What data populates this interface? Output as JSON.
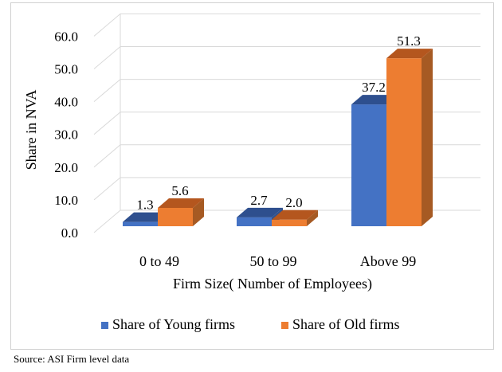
{
  "chart_data": {
    "type": "bar",
    "categories": [
      "0 to 49",
      "50 to 99",
      "Above 99"
    ],
    "series": [
      {
        "name": "Share of Young firms",
        "values": [
          1.3,
          2.7,
          37.2
        ],
        "color": "#4472C4",
        "side_color": "#2F528F",
        "top_color": "#2E4F8E"
      },
      {
        "name": "Share of Old firms",
        "values": [
          5.6,
          2.0,
          51.3
        ],
        "color": "#ED7D31",
        "side_color": "#A65A23",
        "top_color": "#B4561E"
      }
    ],
    "title": "",
    "xlabel": "Firm Size( Number of Employees)",
    "ylabel": "Share in NVA",
    "ylim": [
      0,
      60
    ],
    "yticks": [
      "0.0",
      "10.0",
      "20.0",
      "30.0",
      "40.0",
      "50.0",
      "60.0"
    ],
    "data_labels": [
      [
        "1.3",
        "2.7",
        "37.2"
      ],
      [
        "5.6",
        "2.0",
        "51.3"
      ]
    ],
    "legend_position": "bottom",
    "grid": true,
    "style": "3d-clustered-column"
  },
  "source_note": "Source: ASI Firm level data"
}
